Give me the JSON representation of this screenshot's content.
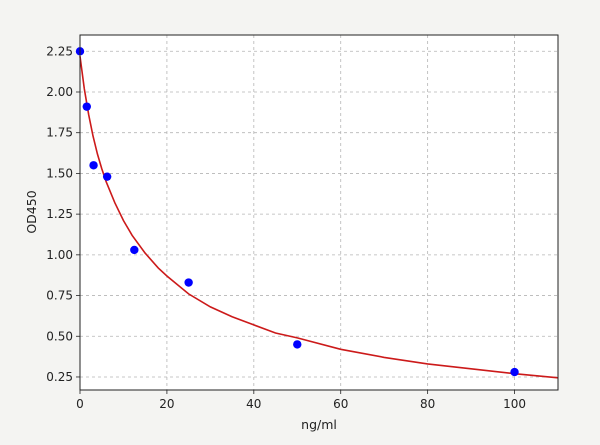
{
  "chart_data": {
    "type": "scatter",
    "title": "",
    "xlabel": "ng/ml",
    "ylabel": "OD450",
    "xlim": [
      0,
      110
    ],
    "ylim": [
      0.17,
      2.35
    ],
    "xticks": [
      0,
      20,
      40,
      60,
      80,
      100
    ],
    "yticks": [
      0.25,
      0.5,
      0.75,
      1.0,
      1.25,
      1.5,
      1.75,
      2.0,
      2.25
    ],
    "xtick_labels": [
      "0",
      "20",
      "40",
      "60",
      "80",
      "100"
    ],
    "ytick_labels": [
      "0.25",
      "0.50",
      "0.75",
      "1.00",
      "1.25",
      "1.50",
      "1.75",
      "2.00",
      "2.25"
    ],
    "grid": true,
    "series": [
      {
        "kind": "points",
        "x": [
          0,
          1.56,
          3.12,
          6.25,
          12.5,
          25,
          50,
          100
        ],
        "y": [
          2.25,
          1.91,
          1.55,
          1.48,
          1.03,
          0.83,
          0.45,
          0.28
        ],
        "color": "#0000ff"
      },
      {
        "kind": "fit-curve",
        "x": [
          0,
          1,
          2,
          3,
          4,
          5,
          6,
          8,
          10,
          12,
          15,
          18,
          20,
          25,
          30,
          35,
          40,
          45,
          50,
          60,
          70,
          80,
          90,
          100,
          110
        ],
        "y": [
          2.22,
          2.02,
          1.86,
          1.73,
          1.62,
          1.53,
          1.45,
          1.32,
          1.21,
          1.12,
          1.01,
          0.92,
          0.87,
          0.76,
          0.68,
          0.62,
          0.57,
          0.52,
          0.49,
          0.42,
          0.37,
          0.33,
          0.3,
          0.27,
          0.245
        ],
        "color": "#cc1a1a"
      }
    ]
  }
}
